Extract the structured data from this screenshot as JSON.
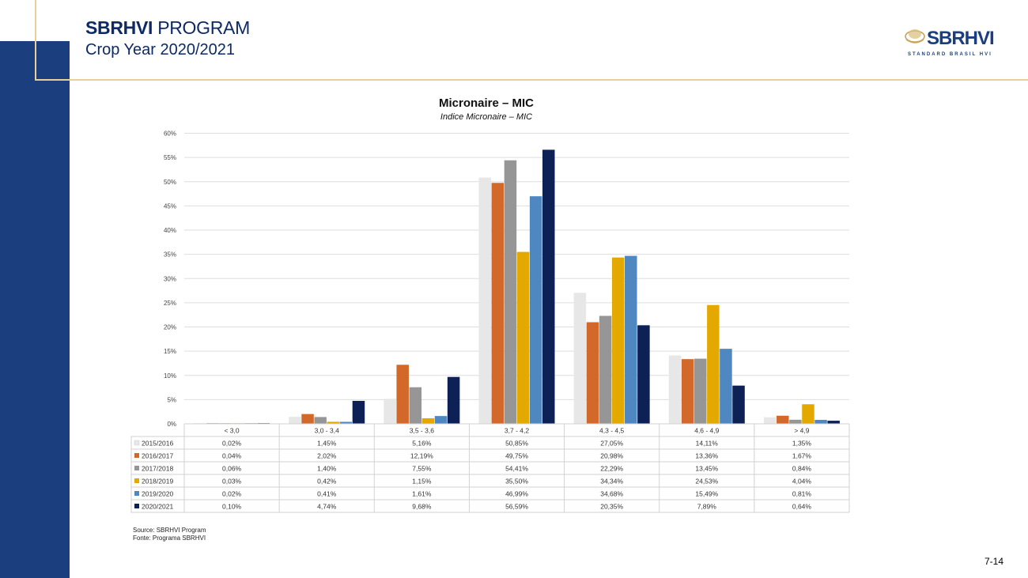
{
  "header": {
    "title_bold": "SBRHVI",
    "title_rest": " PROGRAM",
    "subtitle": "Crop Year 2020/2021"
  },
  "logo": {
    "text_main": "SBRHVI",
    "text_sub": "STANDARD BRASIL HVI",
    "icon": "cotton-boll-icon"
  },
  "page_number": "7-14",
  "source": {
    "line1": "Source: SBRHVI Program",
    "line2": "Fonte:   Programa SBRHVI"
  },
  "colors": {
    "brand_navy": "#1b3f7e",
    "gold": "#e6cf98"
  },
  "chart_data": {
    "type": "bar",
    "title": "Micronaire – MIC",
    "subtitle": "Indice Micronaire – MIC",
    "xlabel": "",
    "ylabel": "",
    "ylim": [
      0,
      60
    ],
    "yticks": [
      "0%",
      "5%",
      "10%",
      "15%",
      "20%",
      "25%",
      "30%",
      "35%",
      "40%",
      "45%",
      "50%",
      "55%",
      "60%"
    ],
    "grid": true,
    "legend_placement": "data-table-left",
    "categories": [
      "< 3,0",
      "3,0 - 3,4",
      "3,5 - 3,6",
      "3,7 - 4,2",
      "4,3 - 4,5",
      "4,6 - 4,9",
      "> 4,9"
    ],
    "series": [
      {
        "name": "2015/2016",
        "color": "#e7e7e7",
        "values": [
          0.02,
          1.45,
          5.16,
          50.85,
          27.05,
          14.11,
          1.35
        ],
        "labels": [
          "0,02%",
          "1,45%",
          "5,16%",
          "50,85%",
          "27,05%",
          "14,11%",
          "1,35%"
        ]
      },
      {
        "name": "2016/2017",
        "color": "#d2692a",
        "values": [
          0.04,
          2.02,
          12.19,
          49.75,
          20.98,
          13.36,
          1.67
        ],
        "labels": [
          "0,04%",
          "2,02%",
          "12,19%",
          "49,75%",
          "20,98%",
          "13,36%",
          "1,67%"
        ]
      },
      {
        "name": "2017/2018",
        "color": "#969696",
        "values": [
          0.06,
          1.4,
          7.55,
          54.41,
          22.29,
          13.45,
          0.84
        ],
        "labels": [
          "0,06%",
          "1,40%",
          "7,55%",
          "54,41%",
          "22,29%",
          "13,45%",
          "0,84%"
        ]
      },
      {
        "name": "2018/2019",
        "color": "#e4a900",
        "values": [
          0.03,
          0.42,
          1.15,
          35.5,
          34.34,
          24.53,
          4.04
        ],
        "labels": [
          "0,03%",
          "0,42%",
          "1,15%",
          "35,50%",
          "34,34%",
          "24,53%",
          "4,04%"
        ]
      },
      {
        "name": "2019/2020",
        "color": "#4f87c0",
        "values": [
          0.02,
          0.41,
          1.61,
          46.99,
          34.68,
          15.49,
          0.81
        ],
        "labels": [
          "0,02%",
          "0,41%",
          "1,61%",
          "46,99%",
          "34,68%",
          "15,49%",
          "0,81%"
        ]
      },
      {
        "name": "2020/2021",
        "color": "#0d2157",
        "values": [
          0.1,
          4.74,
          9.68,
          56.59,
          20.35,
          7.89,
          0.64
        ],
        "labels": [
          "0,10%",
          "4,74%",
          "9,68%",
          "56,59%",
          "20,35%",
          "7,89%",
          "0,64%"
        ]
      }
    ]
  }
}
